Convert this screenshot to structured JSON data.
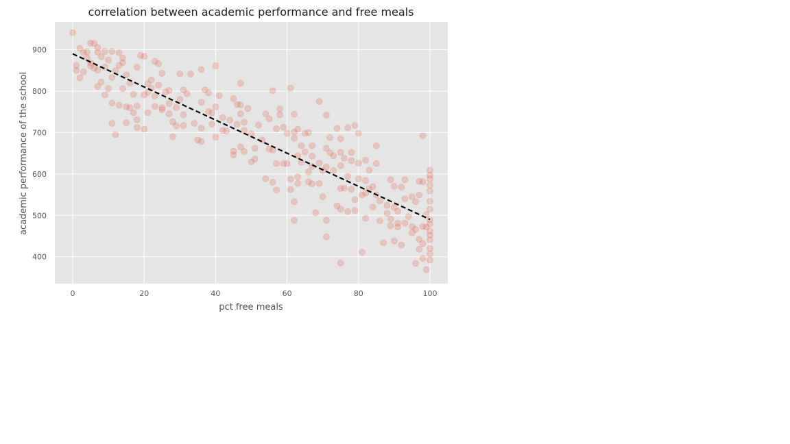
{
  "chart_data": {
    "type": "scatter",
    "title": "correlation between academic performance and free meals",
    "xlabel": "pct free meals",
    "ylabel": "academic performance of the school",
    "xlim": [
      -5,
      105
    ],
    "ylim": [
      335,
      967
    ],
    "x_ticks": [
      0,
      20,
      40,
      60,
      80,
      100
    ],
    "y_ticks": [
      400,
      500,
      600,
      700,
      800,
      900
    ],
    "grid": true,
    "background_color": "#e5e5e5",
    "grid_color": "#ffffff",
    "point_color": "#e24a33",
    "point_alpha": 0.2,
    "regression_line": {
      "x": [
        0,
        100
      ],
      "y": [
        890,
        490
      ],
      "style": "dashed",
      "color": "#000000"
    },
    "series": [
      {
        "points": [
          [
            0,
            941
          ],
          [
            1,
            862
          ],
          [
            1,
            850
          ],
          [
            2,
            903
          ],
          [
            2,
            832
          ],
          [
            3,
            893
          ],
          [
            3,
            846
          ],
          [
            4,
            880
          ],
          [
            4,
            895
          ],
          [
            5,
            916
          ],
          [
            5,
            868
          ],
          [
            5,
            861
          ],
          [
            6,
            915
          ],
          [
            6,
            855
          ],
          [
            7,
            905
          ],
          [
            7,
            894
          ],
          [
            7,
            851
          ],
          [
            7,
            811
          ],
          [
            8,
            883
          ],
          [
            8,
            822
          ],
          [
            9,
            896
          ],
          [
            9,
            858
          ],
          [
            9,
            791
          ],
          [
            10,
            875
          ],
          [
            10,
            806
          ],
          [
            11,
            896
          ],
          [
            11,
            833
          ],
          [
            11,
            771
          ],
          [
            11,
            722
          ],
          [
            12,
            850
          ],
          [
            12,
            695
          ],
          [
            13,
            893
          ],
          [
            13,
            862
          ],
          [
            13,
            766
          ],
          [
            14,
            880
          ],
          [
            14,
            869
          ],
          [
            14,
            806
          ],
          [
            15,
            839
          ],
          [
            15,
            762
          ],
          [
            15,
            724
          ],
          [
            16,
            820
          ],
          [
            16,
            760
          ],
          [
            17,
            792
          ],
          [
            17,
            748
          ],
          [
            18,
            858
          ],
          [
            18,
            764
          ],
          [
            18,
            731
          ],
          [
            18,
            712
          ],
          [
            19,
            886
          ],
          [
            20,
            884
          ],
          [
            20,
            791
          ],
          [
            20,
            708
          ],
          [
            21,
            818
          ],
          [
            21,
            797
          ],
          [
            21,
            748
          ],
          [
            22,
            827
          ],
          [
            22,
            807
          ],
          [
            23,
            872
          ],
          [
            23,
            788
          ],
          [
            23,
            763
          ],
          [
            24,
            866
          ],
          [
            24,
            814
          ],
          [
            25,
            843
          ],
          [
            25,
            760
          ],
          [
            25,
            755
          ],
          [
            26,
            798
          ],
          [
            27,
            802
          ],
          [
            27,
            770
          ],
          [
            27,
            745
          ],
          [
            28,
            726
          ],
          [
            28,
            690
          ],
          [
            29,
            716
          ],
          [
            29,
            760
          ],
          [
            30,
            842
          ],
          [
            30,
            780
          ],
          [
            31,
            803
          ],
          [
            31,
            743
          ],
          [
            31,
            717
          ],
          [
            32,
            794
          ],
          [
            33,
            841
          ],
          [
            34,
            722
          ],
          [
            35,
            682
          ],
          [
            36,
            852
          ],
          [
            36,
            773
          ],
          [
            36,
            711
          ],
          [
            36,
            678
          ],
          [
            37,
            803
          ],
          [
            38,
            796
          ],
          [
            38,
            751
          ],
          [
            39,
            748
          ],
          [
            39,
            720
          ],
          [
            40,
            861
          ],
          [
            40,
            762
          ],
          [
            40,
            689
          ],
          [
            41,
            789
          ],
          [
            42,
            736
          ],
          [
            42,
            705
          ],
          [
            43,
            704
          ],
          [
            44,
            730
          ],
          [
            45,
            655
          ],
          [
            45,
            646
          ],
          [
            45,
            782
          ],
          [
            46,
            768
          ],
          [
            46,
            720
          ],
          [
            47,
            767
          ],
          [
            47,
            745
          ],
          [
            47,
            819
          ],
          [
            47,
            665
          ],
          [
            48,
            705
          ],
          [
            48,
            725
          ],
          [
            48,
            654
          ],
          [
            49,
            758
          ],
          [
            50,
            697
          ],
          [
            50,
            629
          ],
          [
            51,
            636
          ],
          [
            51,
            662
          ],
          [
            52,
            718
          ],
          [
            53,
            682
          ],
          [
            54,
            745
          ],
          [
            54,
            588
          ],
          [
            55,
            660
          ],
          [
            55,
            733
          ],
          [
            56,
            801
          ],
          [
            56,
            580
          ],
          [
            56,
            658
          ],
          [
            57,
            709
          ],
          [
            57,
            625
          ],
          [
            57,
            561
          ],
          [
            58,
            757
          ],
          [
            58,
            743
          ],
          [
            59,
            625
          ],
          [
            59,
            713
          ],
          [
            60,
            698
          ],
          [
            60,
            625
          ],
          [
            61,
            807
          ],
          [
            61,
            587
          ],
          [
            61,
            562
          ],
          [
            62,
            744
          ],
          [
            62,
            701
          ],
          [
            62,
            686
          ],
          [
            62,
            533
          ],
          [
            62,
            488
          ],
          [
            63,
            708
          ],
          [
            63,
            644
          ],
          [
            63,
            593
          ],
          [
            63,
            577
          ],
          [
            64,
            668
          ],
          [
            64,
            628
          ],
          [
            65,
            698
          ],
          [
            65,
            653
          ],
          [
            66,
            700
          ],
          [
            66,
            605
          ],
          [
            66,
            581
          ],
          [
            67,
            668
          ],
          [
            67,
            643
          ],
          [
            67,
            618
          ],
          [
            67,
            576
          ],
          [
            68,
            506
          ],
          [
            69,
            775
          ],
          [
            69,
            626
          ],
          [
            69,
            577
          ],
          [
            70,
            608
          ],
          [
            70,
            545
          ],
          [
            71,
            742
          ],
          [
            71,
            662
          ],
          [
            71,
            617
          ],
          [
            71,
            488
          ],
          [
            71,
            448
          ],
          [
            72,
            688
          ],
          [
            72,
            651
          ],
          [
            73,
            644
          ],
          [
            73,
            608
          ],
          [
            74,
            710
          ],
          [
            74,
            523
          ],
          [
            75,
            685
          ],
          [
            75,
            652
          ],
          [
            75,
            620
          ],
          [
            75,
            565
          ],
          [
            75,
            515
          ],
          [
            75,
            385
          ],
          [
            76,
            638
          ],
          [
            76,
            566
          ],
          [
            77,
            509
          ],
          [
            77,
            712
          ],
          [
            77,
            594
          ],
          [
            78,
            652
          ],
          [
            78,
            632
          ],
          [
            78,
            563
          ],
          [
            79,
            717
          ],
          [
            79,
            538
          ],
          [
            79,
            512
          ],
          [
            80,
            698
          ],
          [
            80,
            626
          ],
          [
            80,
            588
          ],
          [
            81,
            549
          ],
          [
            81,
            411
          ],
          [
            82,
            633
          ],
          [
            82,
            584
          ],
          [
            82,
            554
          ],
          [
            82,
            493
          ],
          [
            83,
            609
          ],
          [
            83,
            564
          ],
          [
            84,
            520
          ],
          [
            84,
            569
          ],
          [
            85,
            668
          ],
          [
            85,
            625
          ],
          [
            85,
            549
          ],
          [
            86,
            535
          ],
          [
            86,
            487
          ],
          [
            87,
            434
          ],
          [
            88,
            505
          ],
          [
            88,
            524
          ],
          [
            89,
            586
          ],
          [
            89,
            491
          ],
          [
            89,
            475
          ],
          [
            90,
            570
          ],
          [
            90,
            519
          ],
          [
            90,
            438
          ],
          [
            91,
            510
          ],
          [
            91,
            472
          ],
          [
            91,
            481
          ],
          [
            92,
            428
          ],
          [
            92,
            568
          ],
          [
            93,
            586
          ],
          [
            93,
            540
          ],
          [
            93,
            481
          ],
          [
            94,
            497
          ],
          [
            95,
            545
          ],
          [
            95,
            473
          ],
          [
            95,
            458
          ],
          [
            96,
            533
          ],
          [
            96,
            466
          ],
          [
            96,
            384
          ],
          [
            97,
            582
          ],
          [
            97,
            549
          ],
          [
            97,
            442
          ],
          [
            97,
            418
          ],
          [
            98,
            692
          ],
          [
            98,
            581
          ],
          [
            98,
            473
          ],
          [
            98,
            432
          ],
          [
            98,
            396
          ],
          [
            99,
            502
          ],
          [
            99,
            472
          ],
          [
            99,
            369
          ],
          [
            100,
            609
          ],
          [
            100,
            597
          ],
          [
            100,
            588
          ],
          [
            100,
            573
          ],
          [
            100,
            559
          ],
          [
            100,
            534
          ],
          [
            100,
            515
          ],
          [
            100,
            489
          ],
          [
            100,
            479
          ],
          [
            100,
            462
          ],
          [
            100,
            452
          ],
          [
            100,
            441
          ],
          [
            100,
            420
          ],
          [
            100,
            407
          ],
          [
            100,
            392
          ]
        ]
      }
    ]
  }
}
